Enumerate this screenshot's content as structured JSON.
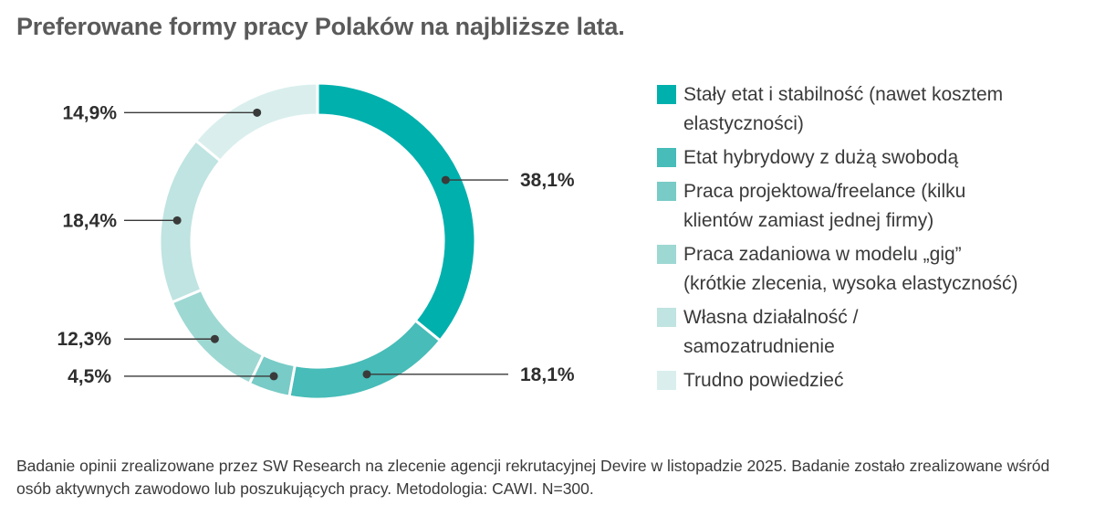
{
  "title": "Preferowane formy pracy Polaków na najbliższe lata.",
  "chart_data": {
    "type": "pie",
    "variant": "donut",
    "title": "Preferowane formy pracy Polaków na najbliższe lata.",
    "unit": "%",
    "legend_position": "right",
    "categories": [
      "Stały etat i stabilność (nawet kosztem\nelastyczności)",
      "Etat hybrydowy z dużą swobodą",
      "Praca projektowa/freelance (kilku\nklientów zamiast jednej firmy)",
      "Praca zadaniowa w modelu „gig”\n(krótkie zlecenia, wysoka elastyczność)",
      "Własna działalność /\nsamozatrudnienie",
      "Trudno powiedzieć"
    ],
    "values": [
      38.1,
      18.1,
      4.5,
      12.3,
      18.4,
      14.9
    ],
    "value_labels": [
      "38,1%",
      "18,1%",
      "4,5%",
      "12,3%",
      "18,4%",
      "14,9%"
    ],
    "colors": [
      "#00b0ad",
      "#47bcb8",
      "#78cbc6",
      "#9ed8d3",
      "#bfe4e1",
      "#daefed"
    ]
  },
  "footnote": "Badanie opinii zrealizowane przez SW Research na zlecenie agencji rekrutacyjnej Devire w listopadzie 2025. Badanie zostało zrealizowane wśród osób aktywnych zawodowo lub poszukujących pracy. Metodologia: CAWI. N=300."
}
